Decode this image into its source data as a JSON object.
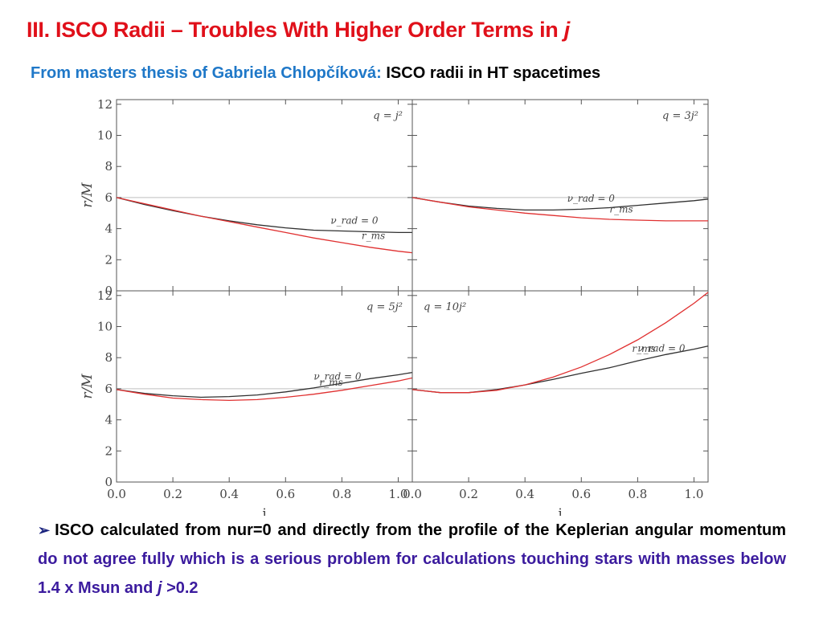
{
  "slide": {
    "title_main": "III. ISCO Radii – Troubles With Higher Order Terms in ",
    "title_var": "j",
    "subtitle_source": "From masters thesis of Gabriela Chlopčíková:",
    "subtitle_topic": "ISCO radii in HT spacetimes",
    "bullet": {
      "arrow": "➢",
      "part1": "ISCO calculated from nur=0 and directly from the profile of the Keplerian angular momentum",
      "part2": "do not agree fully which is a serious problem for calculations touching stars with masses below 1.4 x Msun and",
      "var": "j",
      "part3": ">0.2"
    },
    "colors": {
      "title": "#e0101a",
      "subtitle_blue": "#1f78c8",
      "bullet_purple": "#3b1b9e",
      "rms_line": "#e03030",
      "nu_line": "#303030",
      "ref_line": "#cccccc"
    }
  },
  "chart_data": {
    "type": "line",
    "layout": "2x2 panels",
    "xlabel": "j",
    "ylabel": "r/M",
    "xlim": [
      0.0,
      1.05
    ],
    "ylim": [
      0,
      12.3
    ],
    "xticks": [
      "0.0",
      "0.2",
      "0.4",
      "0.6",
      "0.8",
      "1.0"
    ],
    "yticks": [
      "0",
      "2",
      "4",
      "6",
      "8",
      "10",
      "12"
    ],
    "reference_line": 6,
    "x": [
      0.0,
      0.1,
      0.2,
      0.3,
      0.4,
      0.5,
      0.6,
      0.7,
      0.8,
      0.9,
      1.0,
      1.05
    ],
    "panels": [
      {
        "label": "q = j²",
        "series": [
          {
            "name": "ν_rad = 0",
            "values": [
              6.0,
              5.55,
              5.15,
              4.8,
              4.5,
              4.25,
              4.05,
              3.9,
              3.85,
              3.8,
              3.75,
              3.75
            ]
          },
          {
            "name": "r_ms",
            "values": [
              6.0,
              5.6,
              5.2,
              4.8,
              4.45,
              4.1,
              3.75,
              3.4,
              3.1,
              2.8,
              2.55,
              2.45
            ]
          }
        ]
      },
      {
        "label": "q = 3j²",
        "series": [
          {
            "name": "ν_rad = 0",
            "values": [
              6.0,
              5.7,
              5.45,
              5.3,
              5.2,
              5.2,
              5.25,
              5.35,
              5.5,
              5.65,
              5.8,
              5.9
            ]
          },
          {
            "name": "r_ms",
            "values": [
              6.0,
              5.7,
              5.4,
              5.2,
              5.0,
              4.85,
              4.7,
              4.6,
              4.55,
              4.5,
              4.5,
              4.5
            ]
          }
        ]
      },
      {
        "label": "q = 5j²",
        "series": [
          {
            "name": "ν_rad = 0",
            "values": [
              5.95,
              5.7,
              5.55,
              5.45,
              5.5,
              5.6,
              5.8,
              6.05,
              6.35,
              6.65,
              6.9,
              7.05
            ]
          },
          {
            "name": "r_ms",
            "values": [
              5.95,
              5.65,
              5.4,
              5.3,
              5.25,
              5.3,
              5.45,
              5.65,
              5.9,
              6.2,
              6.5,
              6.7
            ]
          }
        ]
      },
      {
        "label": "q = 10j²",
        "series": [
          {
            "name": "ν_rad = 0",
            "values": [
              5.95,
              5.75,
              5.75,
              5.95,
              6.25,
              6.6,
              7.0,
              7.35,
              7.8,
              8.2,
              8.55,
              8.75
            ]
          },
          {
            "name": "r_ms",
            "values": [
              5.95,
              5.75,
              5.75,
              5.9,
              6.25,
              6.75,
              7.4,
              8.2,
              9.15,
              10.25,
              11.5,
              12.2
            ]
          }
        ]
      }
    ]
  }
}
